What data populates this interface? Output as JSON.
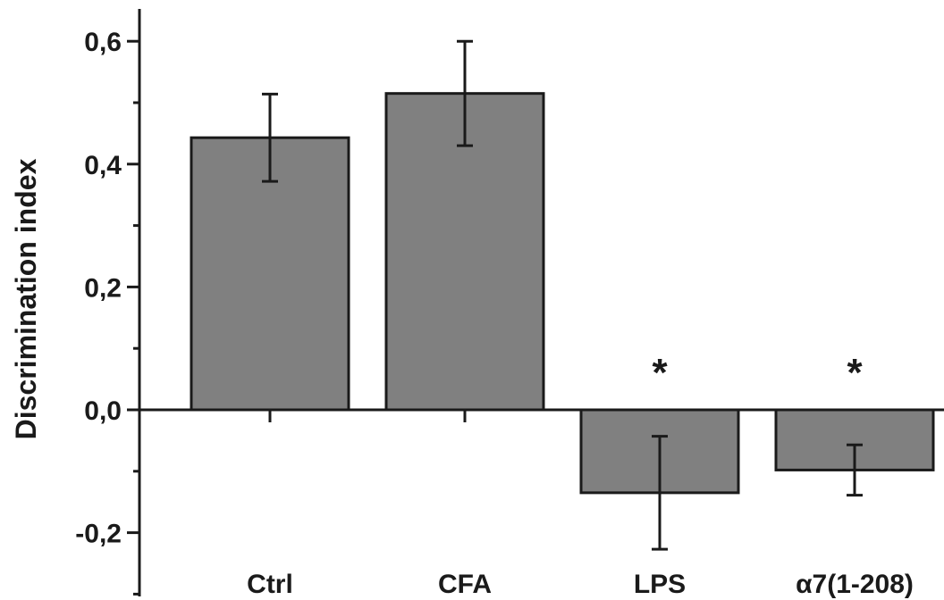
{
  "chart_data": {
    "type": "bar",
    "title": "",
    "xlabel": "",
    "ylabel": "Discrimination index",
    "categories": [
      "Ctrl",
      "CFA",
      "LPS",
      "α7(1-208)"
    ],
    "values": [
      0.443,
      0.515,
      -0.135,
      -0.098
    ],
    "errors": [
      0.071,
      0.085,
      0.092,
      0.041
    ],
    "annotations": [
      "",
      "",
      "*",
      "*"
    ],
    "ylim": [
      -0.25,
      0.65
    ],
    "yticks": [
      -0.2,
      0.0,
      0.2,
      0.4,
      0.6
    ],
    "ytick_labels": [
      "-0,2",
      "0,0",
      "0,2",
      "0,4",
      "0,6"
    ],
    "grid": false,
    "legend": "none",
    "colors": {
      "bar_fill": "#808080",
      "bar_stroke": "#1a1a1a",
      "axis": "#1a1a1a",
      "background": "#ffffff"
    }
  }
}
